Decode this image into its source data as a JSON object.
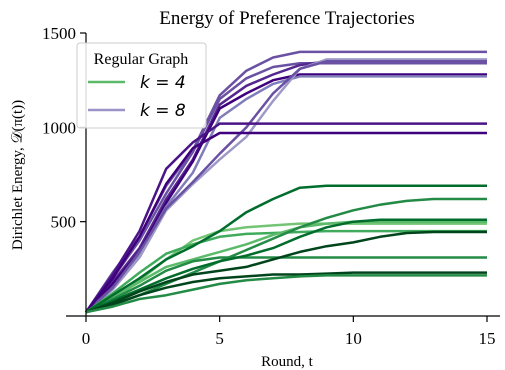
{
  "chart_data": {
    "type": "line",
    "title": "Energy of Preference Trajectories",
    "xlabel": "Round, t",
    "ylabel": "Dirichlet Energy, 𝒟(π(t))",
    "xlim": [
      0,
      15
    ],
    "ylim": [
      0,
      1500
    ],
    "xticks": [
      0,
      5,
      10,
      15
    ],
    "yticks": [
      500,
      1000,
      1500
    ],
    "grid": false,
    "legend": {
      "title": "Regular Graph",
      "placement": "top-left",
      "entries": [
        {
          "label": "k = 4",
          "color": "#5cba6b"
        },
        {
          "label": "k = 8",
          "color": "#9a94c8"
        }
      ]
    },
    "x": [
      0,
      1,
      2,
      3,
      4,
      5,
      6,
      7,
      8,
      9,
      10,
      11,
      12,
      13,
      14,
      15
    ],
    "series": [
      {
        "group": "k = 8",
        "color": "#6a51a3",
        "values": [
          20,
          230,
          420,
          690,
          880,
          1170,
          1300,
          1370,
          1400,
          1400,
          1400,
          1400,
          1400,
          1400,
          1400,
          1400
        ]
      },
      {
        "group": "k = 8",
        "color": "#6a51a3",
        "values": [
          20,
          200,
          400,
          650,
          870,
          1150,
          1260,
          1320,
          1340,
          1340,
          1340,
          1340,
          1340,
          1340,
          1340,
          1340
        ]
      },
      {
        "group": "k = 8",
        "color": "#54278f",
        "values": [
          20,
          180,
          360,
          620,
          830,
          1120,
          1220,
          1280,
          1330,
          1350,
          1350,
          1350,
          1350,
          1350,
          1350,
          1350
        ]
      },
      {
        "group": "k = 8",
        "color": "#3f007d",
        "values": [
          20,
          170,
          340,
          600,
          820,
          1100,
          1180,
          1250,
          1280,
          1280,
          1280,
          1280,
          1280,
          1280,
          1280,
          1280
        ]
      },
      {
        "group": "k = 8",
        "color": "#807dba",
        "values": [
          20,
          150,
          330,
          580,
          760,
          1050,
          1150,
          1230,
          1270,
          1270,
          1270,
          1270,
          1270,
          1270,
          1270,
          1270
        ]
      },
      {
        "group": "k = 8",
        "color": "#9e9ac8",
        "values": [
          20,
          140,
          310,
          560,
          700,
          830,
          950,
          1140,
          1310,
          1360,
          1360,
          1360,
          1360,
          1360,
          1360,
          1360
        ]
      },
      {
        "group": "k = 8",
        "color": "#6a51a3",
        "values": [
          20,
          150,
          340,
          570,
          710,
          860,
          1000,
          1180,
          1310,
          1350,
          1350,
          1350,
          1350,
          1350,
          1350,
          1350
        ]
      },
      {
        "group": "k = 8",
        "color": "#4a1486",
        "values": [
          20,
          220,
          450,
          780,
          920,
          1020,
          1020,
          1020,
          1020,
          1020,
          1020,
          1020,
          1020,
          1020,
          1020,
          1020
        ]
      },
      {
        "group": "k = 8",
        "color": "#3f007d",
        "values": [
          20,
          200,
          420,
          700,
          890,
          970,
          970,
          970,
          970,
          970,
          970,
          970,
          970,
          970,
          970,
          970
        ]
      },
      {
        "group": "k = 4",
        "color": "#74c476",
        "values": [
          20,
          80,
          190,
          300,
          400,
          450,
          470,
          480,
          490,
          490,
          490,
          490,
          490,
          490,
          490,
          490
        ]
      },
      {
        "group": "k = 4",
        "color": "#41ab5d",
        "values": [
          20,
          120,
          230,
          330,
          380,
          420,
          435,
          440,
          445,
          450,
          450,
          450,
          450,
          450,
          450,
          450
        ]
      },
      {
        "group": "k = 4",
        "color": "#5cba6b",
        "values": [
          20,
          100,
          180,
          260,
          300,
          340,
          380,
          430,
          470,
          490,
          500,
          500,
          500,
          500,
          500,
          500
        ]
      },
      {
        "group": "k = 4",
        "color": "#238b45",
        "values": [
          20,
          90,
          160,
          240,
          290,
          310,
          310,
          310,
          310,
          310,
          310,
          310,
          310,
          310,
          310,
          310
        ]
      },
      {
        "group": "k = 4",
        "color": "#006d2c",
        "values": [
          20,
          110,
          200,
          300,
          370,
          450,
          550,
          620,
          680,
          690,
          690,
          690,
          690,
          690,
          690,
          690
        ]
      },
      {
        "group": "k = 4",
        "color": "#238b45",
        "values": [
          20,
          60,
          110,
          170,
          230,
          290,
          350,
          410,
          470,
          520,
          560,
          590,
          610,
          620,
          620,
          620
        ]
      },
      {
        "group": "k = 4",
        "color": "#006d2c",
        "values": [
          20,
          80,
          140,
          200,
          250,
          290,
          320,
          360,
          420,
          470,
          500,
          510,
          510,
          510,
          510,
          510
        ]
      },
      {
        "group": "k = 4",
        "color": "#00441b",
        "values": [
          20,
          70,
          130,
          180,
          220,
          240,
          260,
          300,
          340,
          370,
          390,
          420,
          440,
          445,
          445,
          445
        ]
      },
      {
        "group": "k = 4",
        "color": "#00441b",
        "values": [
          20,
          60,
          110,
          150,
          180,
          200,
          210,
          220,
          220,
          225,
          230,
          230,
          230,
          230,
          230,
          230
        ]
      },
      {
        "group": "k = 4",
        "color": "#238b45",
        "values": [
          20,
          50,
          90,
          110,
          140,
          170,
          190,
          200,
          210,
          215,
          215,
          215,
          215,
          215,
          215,
          215
        ]
      }
    ]
  }
}
